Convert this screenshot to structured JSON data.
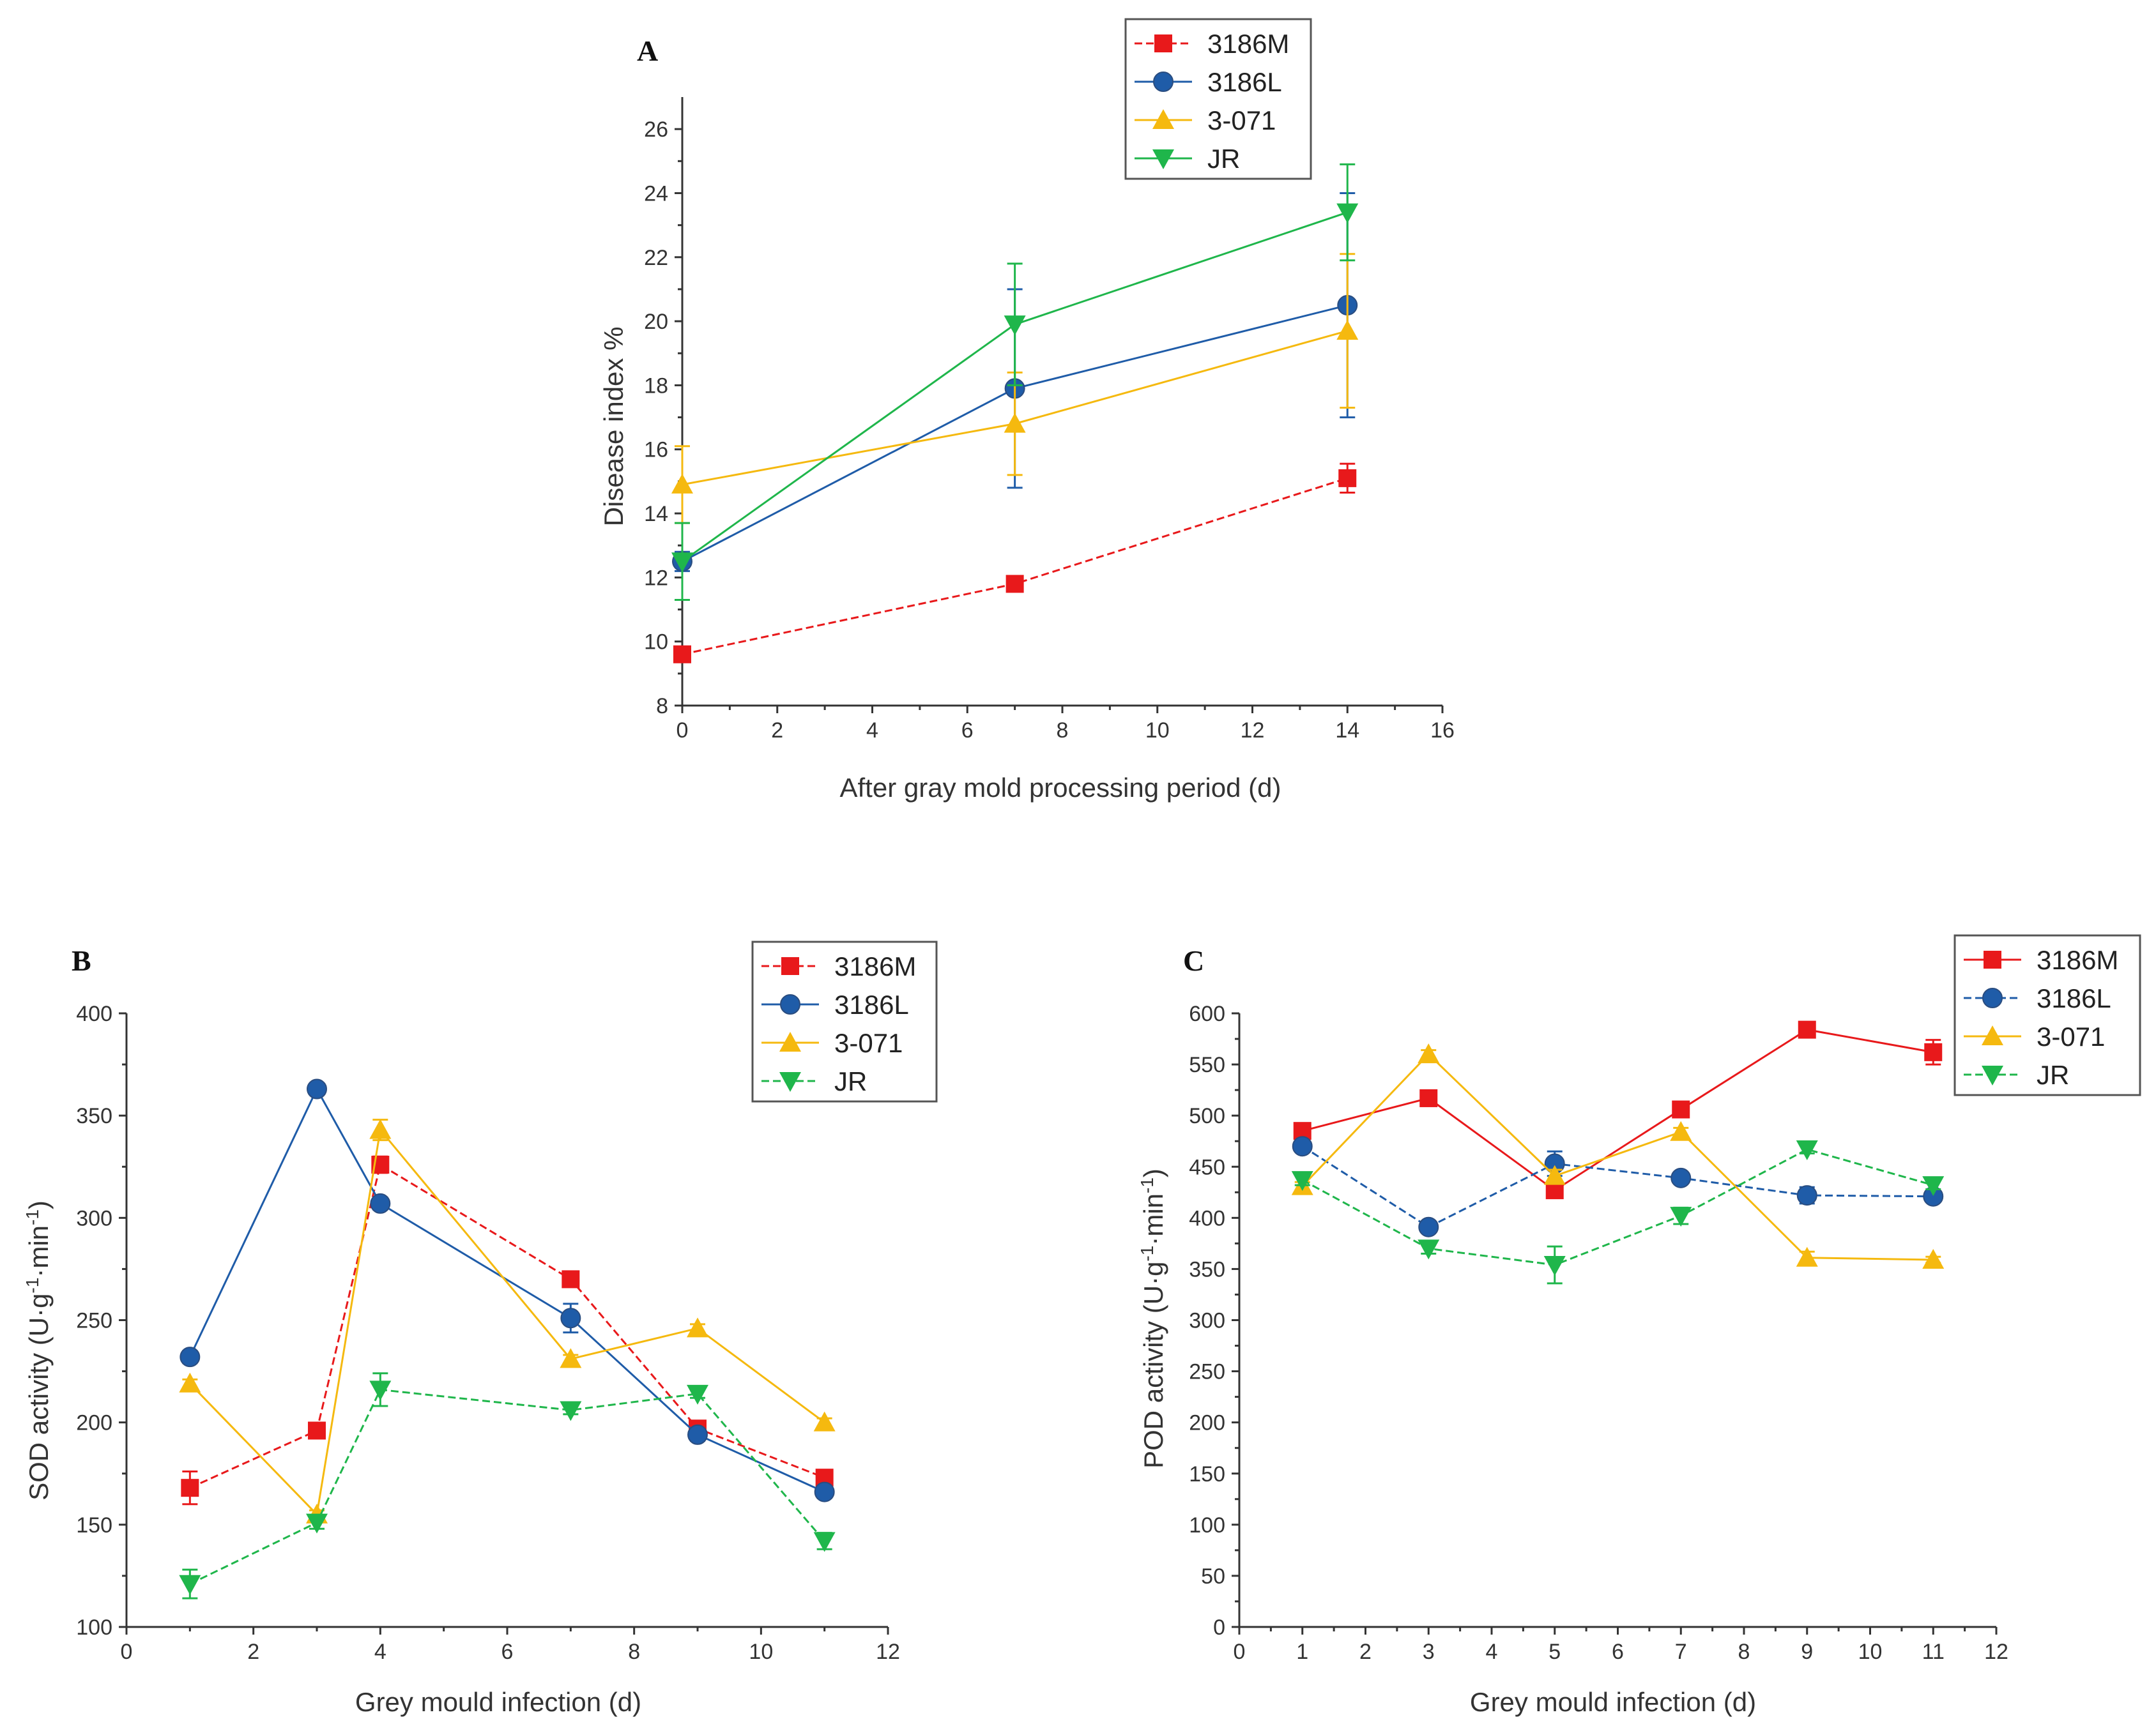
{
  "chart_data": [
    {
      "type": "line",
      "panel_label": "A",
      "title": "",
      "xlabel": "After  gray mold processing period (d)",
      "ylabel": "Disease index %",
      "xlim": [
        0,
        16
      ],
      "ylim": [
        8,
        27
      ],
      "xticks": [
        0,
        2,
        4,
        6,
        8,
        10,
        12,
        14,
        16
      ],
      "yticks": [
        8,
        10,
        12,
        14,
        16,
        18,
        20,
        22,
        24,
        26
      ],
      "legend_position": "top-right",
      "series": [
        {
          "name": "3186M",
          "color": "#e8191b",
          "marker": "square",
          "dash": "dashed",
          "x": [
            0,
            7,
            14
          ],
          "y": [
            9.6,
            11.8,
            15.1
          ],
          "err": [
            0.1,
            0.1,
            0.45
          ]
        },
        {
          "name": "3186L",
          "color": "#1f5ca8",
          "marker": "circle",
          "dash": "solid",
          "x": [
            0,
            7,
            14
          ],
          "y": [
            12.5,
            17.9,
            20.5
          ],
          "err": [
            0.3,
            3.1,
            3.5
          ]
        },
        {
          "name": "3-071",
          "color": "#f5b90f",
          "marker": "triangle-up",
          "dash": "solid",
          "x": [
            0,
            7,
            14
          ],
          "y": [
            14.9,
            16.8,
            19.7
          ],
          "err": [
            1.2,
            1.6,
            2.4
          ]
        },
        {
          "name": "JR",
          "color": "#1fb64b",
          "marker": "triangle-down",
          "dash": "solid",
          "x": [
            0,
            7,
            14
          ],
          "y": [
            12.5,
            19.9,
            23.4
          ],
          "err": [
            1.2,
            1.9,
            1.5
          ]
        }
      ]
    },
    {
      "type": "line",
      "panel_label": "B",
      "title": "",
      "xlabel": "Grey mould infection (d)",
      "ylabel": "SOD activity (U·g⁻¹·min⁻¹)",
      "xlim": [
        0,
        12
      ],
      "ylim": [
        100,
        400
      ],
      "xticks": [
        0,
        2,
        4,
        6,
        8,
        10,
        12
      ],
      "yticks": [
        100,
        150,
        200,
        250,
        300,
        350,
        400
      ],
      "legend_position": "top-right",
      "series": [
        {
          "name": "3186M",
          "color": "#e8191b",
          "marker": "square",
          "dash": "dashed",
          "x": [
            1,
            3,
            4,
            7,
            9,
            11
          ],
          "y": [
            168,
            196,
            326,
            270,
            197,
            173
          ],
          "err": [
            8,
            3,
            4,
            2,
            3,
            2
          ]
        },
        {
          "name": "3186L",
          "color": "#1f5ca8",
          "marker": "circle",
          "dash": "solid",
          "x": [
            1,
            3,
            4,
            7,
            9,
            11
          ],
          "y": [
            232,
            363,
            307,
            251,
            194,
            166
          ],
          "err": [
            3,
            2,
            3,
            7,
            3,
            3
          ]
        },
        {
          "name": "3-071",
          "color": "#f5b90f",
          "marker": "triangle-up",
          "dash": "solid",
          "x": [
            1,
            3,
            4,
            7,
            9,
            11
          ],
          "y": [
            219,
            155,
            343,
            231,
            246,
            200
          ],
          "err": [
            2,
            2,
            5,
            2,
            2,
            2
          ]
        },
        {
          "name": "JR",
          "color": "#1fb64b",
          "marker": "triangle-down",
          "dash": "dashed",
          "x": [
            1,
            3,
            4,
            7,
            9,
            11
          ],
          "y": [
            121,
            151,
            216,
            206,
            214,
            142
          ],
          "err": [
            7,
            3,
            8,
            2,
            2,
            4
          ]
        }
      ]
    },
    {
      "type": "line",
      "panel_label": "C",
      "title": "",
      "xlabel": "Grey mould infection (d)",
      "ylabel": "POD activity (U·g⁻¹·min⁻¹)",
      "xlim": [
        0,
        12
      ],
      "ylim": [
        0,
        600
      ],
      "xticks": [
        0,
        1,
        2,
        3,
        4,
        5,
        6,
        7,
        8,
        9,
        10,
        11,
        12
      ],
      "yticks": [
        0,
        50,
        100,
        150,
        200,
        250,
        300,
        350,
        400,
        450,
        500,
        550,
        600
      ],
      "legend_position": "top-right",
      "series": [
        {
          "name": "3186M",
          "color": "#e8191b",
          "marker": "square",
          "dash": "solid",
          "x": [
            1,
            3,
            5,
            7,
            9,
            11
          ],
          "y": [
            485,
            517,
            427,
            506,
            584,
            562
          ],
          "err": [
            5,
            4,
            6,
            4,
            3,
            12
          ]
        },
        {
          "name": "3186L",
          "color": "#1f5ca8",
          "marker": "circle",
          "dash": "dashed",
          "x": [
            1,
            3,
            5,
            7,
            9,
            11
          ],
          "y": [
            470,
            391,
            453,
            439,
            422,
            421
          ],
          "err": [
            4,
            5,
            12,
            4,
            8,
            5
          ]
        },
        {
          "name": "3-071",
          "color": "#f5b90f",
          "marker": "triangle-up",
          "dash": "solid",
          "x": [
            1,
            3,
            5,
            7,
            9,
            11
          ],
          "y": [
            431,
            560,
            441,
            484,
            361,
            359
          ],
          "err": [
            4,
            4,
            6,
            4,
            6,
            3
          ]
        },
        {
          "name": "JR",
          "color": "#1fb64b",
          "marker": "triangle-down",
          "dash": "dashed",
          "x": [
            1,
            3,
            5,
            7,
            9,
            11
          ],
          "y": [
            437,
            370,
            354,
            402,
            467,
            432
          ],
          "err": [
            5,
            5,
            18,
            8,
            4,
            4
          ]
        }
      ]
    }
  ]
}
